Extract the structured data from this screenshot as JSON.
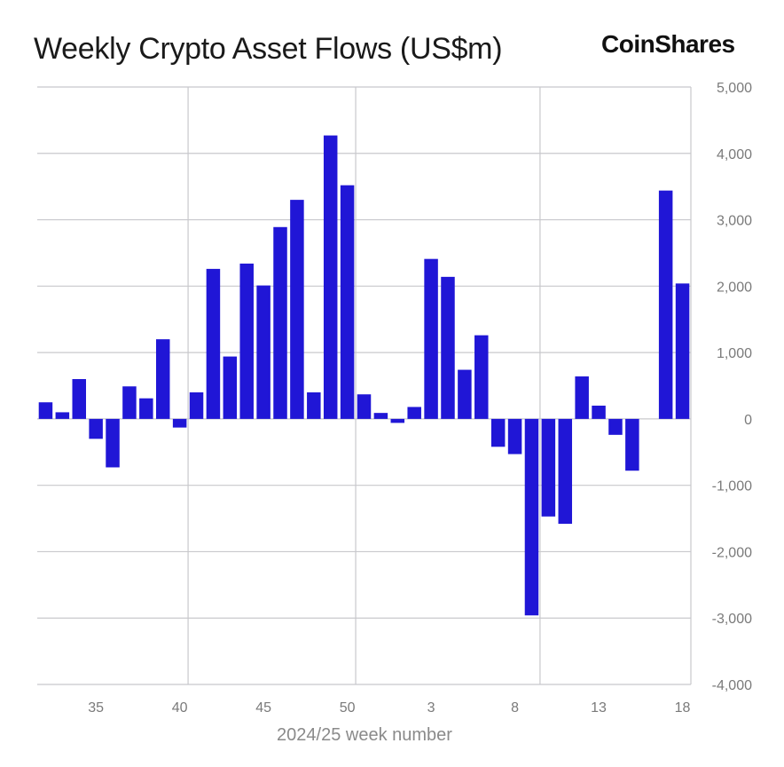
{
  "header": {
    "title": "Weekly Crypto Asset Flows (US$m)",
    "brand": "CoinShares"
  },
  "colors": {
    "bar": "#2016d6",
    "grid": "#c8c8cc",
    "background": "#ffffff"
  },
  "chart_data": {
    "type": "bar",
    "title": "Weekly Crypto Asset Flows (US$m)",
    "xlabel": "2024/25 week number",
    "ylabel": "",
    "ylim": [
      -4000,
      5000
    ],
    "y_ticks": [
      "5,000",
      "4,000",
      "3,000",
      "2,000",
      "1,000",
      "0",
      "-1,000",
      "-2,000",
      "-3,000",
      "-4,000"
    ],
    "x_tick_labels": [
      "35",
      "40",
      "45",
      "50",
      "3",
      "8",
      "13",
      "18"
    ],
    "grid": true,
    "categories": [
      "32",
      "33",
      "34",
      "35",
      "36",
      "37",
      "38",
      "39",
      "40",
      "41",
      "42",
      "43",
      "44",
      "45",
      "46",
      "47",
      "48",
      "49",
      "50",
      "51",
      "52",
      "1",
      "2",
      "3",
      "4",
      "5",
      "6",
      "7",
      "8",
      "9",
      "10",
      "11",
      "12",
      "13",
      "14",
      "15",
      "16",
      "17",
      "18"
    ],
    "values": [
      250,
      100,
      600,
      -300,
      -730,
      490,
      310,
      1200,
      -130,
      400,
      2260,
      940,
      2340,
      2010,
      2890,
      3300,
      400,
      4270,
      3520,
      370,
      90,
      -60,
      180,
      2410,
      2140,
      740,
      1260,
      -420,
      -530,
      -2960,
      -1470,
      -1580,
      640,
      200,
      -240,
      -780,
      0,
      3440,
      2040
    ]
  }
}
